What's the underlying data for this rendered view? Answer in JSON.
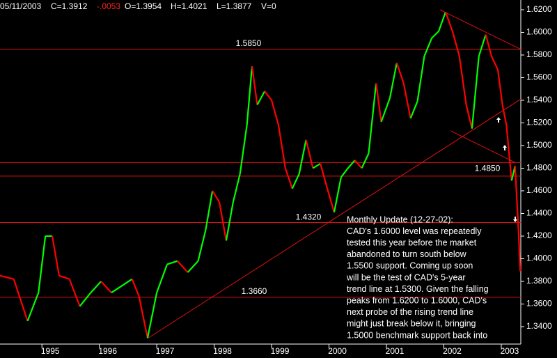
{
  "chart_data": {
    "type": "price-line",
    "header": {
      "date": "05/11/2003",
      "close": "C=1.3912",
      "change": "-.0053",
      "open": "O=1.3954",
      "high": "H=1.4021",
      "low": "L=1.3877",
      "volume": "V=0"
    },
    "x": [
      1994.27,
      1994.51,
      1994.75,
      1994.94,
      1995.06,
      1995.18,
      1995.3,
      1995.48,
      1995.66,
      1995.85,
      1996.03,
      1996.21,
      1996.39,
      1996.57,
      1996.69,
      1996.84,
      1997.0,
      1997.18,
      1997.36,
      1997.54,
      1997.72,
      1997.85,
      1997.97,
      1998.09,
      1998.21,
      1998.33,
      1998.45,
      1998.57,
      1998.66,
      1998.75,
      1998.88,
      1999.0,
      1999.12,
      1999.24,
      1999.36,
      1999.48,
      1999.6,
      1999.72,
      1999.85,
      1999.97,
      2000.09,
      2000.21,
      2000.33,
      2000.45,
      2000.57,
      2000.69,
      2000.82,
      2000.91,
      2001.06,
      2001.18,
      2001.3,
      2001.42,
      2001.54,
      2001.66,
      2001.79,
      2001.91,
      2002.03,
      2002.15,
      2002.27,
      2002.39,
      2002.49,
      2002.61,
      2002.73,
      2002.83,
      2002.94,
      2003.02,
      2003.09,
      2003.18,
      2003.24,
      2003.3,
      2003.33
    ],
    "values": [
      1.385,
      1.382,
      1.345,
      1.37,
      1.42,
      1.42,
      1.385,
      1.382,
      1.358,
      1.37,
      1.38,
      1.37,
      1.376,
      1.382,
      1.367,
      1.33,
      1.37,
      1.395,
      1.398,
      1.388,
      1.398,
      1.425,
      1.46,
      1.45,
      1.416,
      1.45,
      1.475,
      1.518,
      1.57,
      1.536,
      1.548,
      1.54,
      1.518,
      1.48,
      1.462,
      1.475,
      1.505,
      1.48,
      1.484,
      1.462,
      1.441,
      1.472,
      1.48,
      1.487,
      1.48,
      1.493,
      1.555,
      1.521,
      1.542,
      1.573,
      1.555,
      1.524,
      1.539,
      1.579,
      1.595,
      1.601,
      1.618,
      1.601,
      1.579,
      1.536,
      1.515,
      1.579,
      1.598,
      1.579,
      1.567,
      1.536,
      1.518,
      1.469,
      1.482,
      1.425,
      1.389
    ],
    "up_color": "#00ff00",
    "down_color": "#ff0000",
    "line_color": "#e01010",
    "xlim": [
      1994.27,
      2003.34
    ],
    "xticks": [
      1995,
      1996,
      1997,
      1998,
      1999,
      2000,
      2001,
      2002,
      2003
    ],
    "ylim": [
      1.3246,
      1.6286
    ],
    "yticks": [
      {
        "value": 1.34,
        "label": "1.3400"
      },
      {
        "value": 1.36,
        "label": "1.3600"
      },
      {
        "value": 1.38,
        "label": "1.3800"
      },
      {
        "value": 1.4,
        "label": "1.4000"
      },
      {
        "value": 1.42,
        "label": "1.4200"
      },
      {
        "value": 1.44,
        "label": "1.4400"
      },
      {
        "value": 1.46,
        "label": "1.4600"
      },
      {
        "value": 1.48,
        "label": "1.4800"
      },
      {
        "value": 1.5,
        "label": "1.5000"
      },
      {
        "value": 1.52,
        "label": "1.5200"
      },
      {
        "value": 1.54,
        "label": "1.5400"
      },
      {
        "value": 1.56,
        "label": "1.5600"
      },
      {
        "value": 1.58,
        "label": "1.5800"
      },
      {
        "value": 1.6,
        "label": "1.6000"
      },
      {
        "value": 1.62,
        "label": "1.6200"
      }
    ],
    "levels": [
      {
        "value": 1.585,
        "label": "1.5850"
      },
      {
        "value": 1.485,
        "label": "1.4850"
      },
      1.473,
      {
        "value": 1.432,
        "label": "1.4320"
      },
      {
        "value": 1.366,
        "label": "1.3660"
      }
    ],
    "trendlines": [
      {
        "x": [
          1996.84,
          2003.34
        ],
        "y": [
          1.3296,
          1.541
        ]
      },
      {
        "x": [
          2001.93,
          2003.34
        ],
        "y": [
          1.62,
          1.585
        ]
      },
      {
        "x": [
          2002.12,
          2003.24
        ],
        "y": [
          1.513,
          1.485
        ]
      }
    ],
    "annotation": [
      "Monthly Update (12-27-02):",
      "CAD's 1.6000 level was repeatedly",
      "tested this year before the market",
      "abandoned to turn south below",
      "1.5500 support. Coming up soon",
      "will be the test of CAD's 5-year",
      "trend line at 1.5300. Given the falling",
      "peaks from 1.6200 to 1.6000, CAD's",
      "next probe of the rising trend line",
      "might just break below it, bringing",
      "1.5000 benchmark support back into"
    ]
  }
}
